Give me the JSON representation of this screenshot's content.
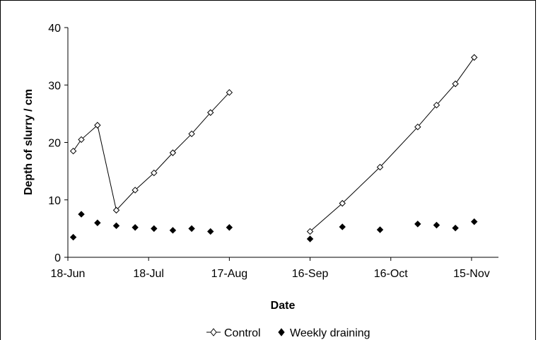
{
  "chart_data": {
    "type": "line",
    "xlabel": "Date",
    "ylabel": "Depth of slurry / cm",
    "ylim": [
      0,
      40
    ],
    "yticks": [
      0,
      10,
      20,
      30,
      40
    ],
    "xticks": [
      "18-Jun",
      "18-Jul",
      "17-Aug",
      "16-Sep",
      "16-Oct",
      "15-Nov"
    ],
    "xlim": [
      "18-Jun",
      "25-Nov"
    ],
    "grid": false,
    "legend": "bottom",
    "series": [
      {
        "name": "Control",
        "marker": "open-diamond",
        "line": true,
        "color": "#000000",
        "segments": [
          [
            {
              "x": "20-Jun",
              "y": 18.5
            },
            {
              "x": "23-Jun",
              "y": 20.5
            },
            {
              "x": "29-Jun",
              "y": 23.0
            },
            {
              "x": "6-Jul",
              "y": 8.2
            },
            {
              "x": "13-Jul",
              "y": 11.7
            },
            {
              "x": "20-Jul",
              "y": 14.7
            },
            {
              "x": "27-Jul",
              "y": 18.2
            },
            {
              "x": "3-Aug",
              "y": 21.5
            },
            {
              "x": "10-Aug",
              "y": 25.2
            },
            {
              "x": "17-Aug",
              "y": 28.7
            }
          ],
          [
            {
              "x": "16-Sep",
              "y": 4.5
            },
            {
              "x": "28-Sep",
              "y": 9.4
            },
            {
              "x": "12-Oct",
              "y": 15.7
            },
            {
              "x": "26-Oct",
              "y": 22.7
            },
            {
              "x": "2-Nov",
              "y": 26.5
            },
            {
              "x": "9-Nov",
              "y": 30.2
            },
            {
              "x": "16-Nov",
              "y": 34.8
            }
          ]
        ]
      },
      {
        "name": "Weekly draining",
        "marker": "filled-diamond",
        "line": false,
        "color": "#000000",
        "points": [
          {
            "x": "20-Jun",
            "y": 3.5
          },
          {
            "x": "23-Jun",
            "y": 7.5
          },
          {
            "x": "29-Jun",
            "y": 6.0
          },
          {
            "x": "6-Jul",
            "y": 5.5
          },
          {
            "x": "13-Jul",
            "y": 5.2
          },
          {
            "x": "20-Jul",
            "y": 5.0
          },
          {
            "x": "27-Jul",
            "y": 4.7
          },
          {
            "x": "3-Aug",
            "y": 5.0
          },
          {
            "x": "10-Aug",
            "y": 4.5
          },
          {
            "x": "17-Aug",
            "y": 5.2
          },
          {
            "x": "16-Sep",
            "y": 3.2
          },
          {
            "x": "28-Sep",
            "y": 5.3
          },
          {
            "x": "12-Oct",
            "y": 4.8
          },
          {
            "x": "26-Oct",
            "y": 5.8
          },
          {
            "x": "2-Nov",
            "y": 5.6
          },
          {
            "x": "9-Nov",
            "y": 5.1
          },
          {
            "x": "16-Nov",
            "y": 6.2
          }
        ]
      }
    ]
  }
}
